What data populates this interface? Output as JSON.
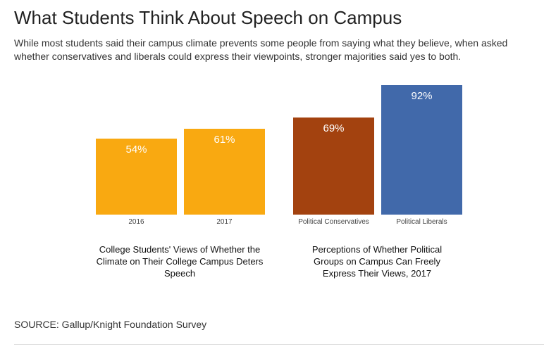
{
  "title": "What Students Think About Speech on Campus",
  "subtitle": "While most students said their campus climate prevents some people from saying what they believe, when asked whether conservatives and liberals could express their viewpoints, stronger majorities said yes to both.",
  "source": "SOURCE: Gallup/Knight Foundation Survey",
  "chart_data": [
    {
      "type": "bar",
      "title": "College Students' Views of Whether the Climate on Their College Campus Deters Speech",
      "categories": [
        "2016",
        "2017"
      ],
      "values": [
        54,
        61
      ],
      "labels": [
        "54%",
        "61%"
      ],
      "ylim": [
        0,
        100
      ],
      "colors": [
        "#F9A911",
        "#F9A911"
      ]
    },
    {
      "type": "bar",
      "title": "Perceptions of Whether Political Groups on Campus Can Freely Express Their Views, 2017",
      "categories": [
        "Political Conservatives",
        "Political Liberals"
      ],
      "values": [
        69,
        92
      ],
      "labels": [
        "69%",
        "92%"
      ],
      "ylim": [
        0,
        100
      ],
      "colors": [
        "#A3420F",
        "#4169AA"
      ]
    }
  ]
}
